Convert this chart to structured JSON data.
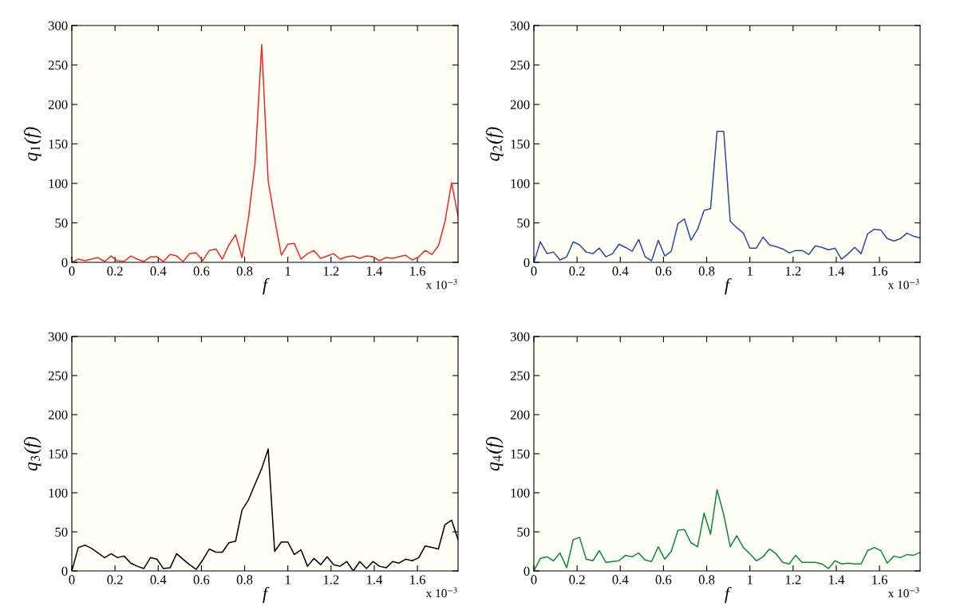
{
  "chart_data": [
    {
      "type": "line",
      "xlabel": "f",
      "ylabel": "q$_{1}$(f)",
      "annotations": [
        "x 10$^{−3}$"
      ],
      "xlim": [
        0,
        1.788
      ],
      "ylim": [
        0,
        300
      ],
      "xticks": [
        0,
        0.2,
        0.4,
        0.6,
        0.8,
        1,
        1.2,
        1.4,
        1.6
      ],
      "yticks": [
        0,
        50,
        100,
        150,
        200,
        250,
        300
      ],
      "x": [
        0,
        0.03,
        0.061,
        0.091,
        0.121,
        0.152,
        0.182,
        0.212,
        0.242,
        0.273,
        0.303,
        0.333,
        0.364,
        0.394,
        0.424,
        0.455,
        0.485,
        0.515,
        0.545,
        0.576,
        0.606,
        0.636,
        0.667,
        0.697,
        0.727,
        0.758,
        0.788,
        0.818,
        0.848,
        0.879,
        0.909,
        0.939,
        0.97,
        1.0,
        1.03,
        1.061,
        1.091,
        1.121,
        1.152,
        1.182,
        1.212,
        1.242,
        1.273,
        1.303,
        1.333,
        1.364,
        1.394,
        1.424,
        1.455,
        1.485,
        1.515,
        1.545,
        1.576,
        1.606,
        1.636,
        1.667,
        1.697,
        1.727,
        1.758,
        1.788
      ],
      "series": [
        {
          "color": "#f0282a",
          "values": [
            0,
            4,
            2,
            4,
            6,
            1,
            8,
            2,
            1,
            8,
            4,
            1,
            7,
            7,
            1,
            10,
            8,
            1,
            11,
            12,
            2,
            15,
            17,
            4,
            22,
            35,
            6,
            57,
            125,
            276,
            103,
            55,
            9,
            23,
            24,
            4,
            11,
            15,
            5,
            8,
            11,
            4,
            7,
            8,
            5,
            8,
            7,
            2,
            6,
            5,
            7,
            9,
            3,
            7,
            15,
            10,
            21,
            51,
            101,
            58
          ]
        }
      ]
    },
    {
      "type": "line",
      "xlabel": "f",
      "ylabel": "q$_{2}$(f)",
      "annotations": [
        "x 10$^{−3}$"
      ],
      "xlim": [
        0,
        1.788
      ],
      "ylim": [
        0,
        300
      ],
      "xticks": [
        0,
        0.2,
        0.4,
        0.6,
        0.8,
        1,
        1.2,
        1.4,
        1.6
      ],
      "yticks": [
        0,
        50,
        100,
        150,
        200,
        250,
        300
      ],
      "x": [
        0,
        0.03,
        0.061,
        0.091,
        0.121,
        0.152,
        0.182,
        0.212,
        0.242,
        0.273,
        0.303,
        0.333,
        0.364,
        0.394,
        0.424,
        0.455,
        0.485,
        0.515,
        0.545,
        0.576,
        0.606,
        0.636,
        0.667,
        0.697,
        0.727,
        0.758,
        0.788,
        0.818,
        0.848,
        0.879,
        0.909,
        0.939,
        0.97,
        1.0,
        1.03,
        1.061,
        1.091,
        1.121,
        1.152,
        1.182,
        1.212,
        1.242,
        1.273,
        1.303,
        1.333,
        1.364,
        1.394,
        1.424,
        1.455,
        1.485,
        1.515,
        1.545,
        1.576,
        1.606,
        1.636,
        1.667,
        1.697,
        1.727,
        1.758,
        1.788
      ],
      "series": [
        {
          "color": "#2e4aa6",
          "values": [
            0,
            26,
            11,
            13,
            3,
            7,
            26,
            22,
            13,
            11,
            18,
            7,
            11,
            23,
            19,
            14,
            29,
            7,
            2,
            28,
            8,
            14,
            49,
            55,
            28,
            42,
            66,
            68,
            166,
            166,
            52,
            44,
            37,
            18,
            18,
            32,
            22,
            20,
            17,
            12,
            15,
            15,
            10,
            21,
            19,
            16,
            18,
            4,
            11,
            19,
            11,
            36,
            42,
            41,
            30,
            27,
            30,
            37,
            33,
            31
          ]
        }
      ]
    },
    {
      "type": "line",
      "xlabel": "f",
      "ylabel": "q$_{3}$(f)",
      "annotations": [
        "x 10$^{−3}$"
      ],
      "xlim": [
        0,
        1.788
      ],
      "ylim": [
        0,
        300
      ],
      "xticks": [
        0,
        0.2,
        0.4,
        0.6,
        0.8,
        1,
        1.2,
        1.4,
        1.6
      ],
      "yticks": [
        0,
        50,
        100,
        150,
        200,
        250,
        300
      ],
      "x": [
        0,
        0.03,
        0.061,
        0.091,
        0.121,
        0.152,
        0.182,
        0.212,
        0.242,
        0.273,
        0.303,
        0.333,
        0.364,
        0.394,
        0.424,
        0.455,
        0.485,
        0.515,
        0.545,
        0.576,
        0.606,
        0.636,
        0.667,
        0.697,
        0.727,
        0.758,
        0.788,
        0.818,
        0.848,
        0.879,
        0.909,
        0.939,
        0.97,
        1.0,
        1.03,
        1.061,
        1.091,
        1.121,
        1.152,
        1.182,
        1.212,
        1.242,
        1.273,
        1.303,
        1.333,
        1.364,
        1.394,
        1.424,
        1.455,
        1.485,
        1.515,
        1.545,
        1.576,
        1.606,
        1.636,
        1.667,
        1.697,
        1.727,
        1.758,
        1.788
      ],
      "series": [
        {
          "color": "#000000",
          "values": [
            0,
            30,
            33,
            29,
            23,
            17,
            22,
            17,
            19,
            10,
            6,
            3,
            17,
            15,
            3,
            4,
            22,
            15,
            8,
            2,
            14,
            28,
            24,
            24,
            36,
            38,
            78,
            91,
            111,
            131,
            156,
            25,
            37,
            37,
            21,
            27,
            6,
            16,
            8,
            18,
            8,
            6,
            12,
            0,
            12,
            3,
            12,
            6,
            4,
            12,
            10,
            15,
            13,
            17,
            32,
            30,
            28,
            59,
            65,
            40
          ]
        }
      ]
    },
    {
      "type": "line",
      "xlabel": "f",
      "ylabel": "q$_{4}$(f)",
      "annotations": [
        "x 10$^{−3}$"
      ],
      "xlim": [
        0,
        1.788
      ],
      "ylim": [
        0,
        300
      ],
      "xticks": [
        0,
        0.2,
        0.4,
        0.6,
        0.8,
        1,
        1.2,
        1.4,
        1.6
      ],
      "yticks": [
        0,
        50,
        100,
        150,
        200,
        250,
        300
      ],
      "x": [
        0,
        0.03,
        0.061,
        0.091,
        0.121,
        0.152,
        0.182,
        0.212,
        0.242,
        0.273,
        0.303,
        0.333,
        0.364,
        0.394,
        0.424,
        0.455,
        0.485,
        0.515,
        0.545,
        0.576,
        0.606,
        0.636,
        0.667,
        0.697,
        0.727,
        0.758,
        0.788,
        0.818,
        0.848,
        0.879,
        0.909,
        0.939,
        0.97,
        1.0,
        1.03,
        1.061,
        1.091,
        1.121,
        1.152,
        1.182,
        1.212,
        1.242,
        1.273,
        1.303,
        1.333,
        1.364,
        1.394,
        1.424,
        1.455,
        1.485,
        1.515,
        1.545,
        1.576,
        1.606,
        1.636,
        1.667,
        1.697,
        1.727,
        1.758,
        1.788
      ],
      "series": [
        {
          "color": "#0c8a40",
          "values": [
            0,
            16,
            18,
            13,
            23,
            4,
            40,
            43,
            15,
            13,
            26,
            11,
            12,
            13,
            20,
            18,
            23,
            14,
            12,
            31,
            15,
            25,
            52,
            53,
            36,
            31,
            74,
            47,
            104,
            72,
            31,
            45,
            30,
            22,
            13,
            18,
            28,
            22,
            11,
            9,
            20,
            11,
            11,
            11,
            9,
            3,
            13,
            9,
            10,
            9,
            9,
            26,
            30,
            26,
            10,
            19,
            17,
            21,
            20,
            24
          ]
        }
      ]
    }
  ]
}
